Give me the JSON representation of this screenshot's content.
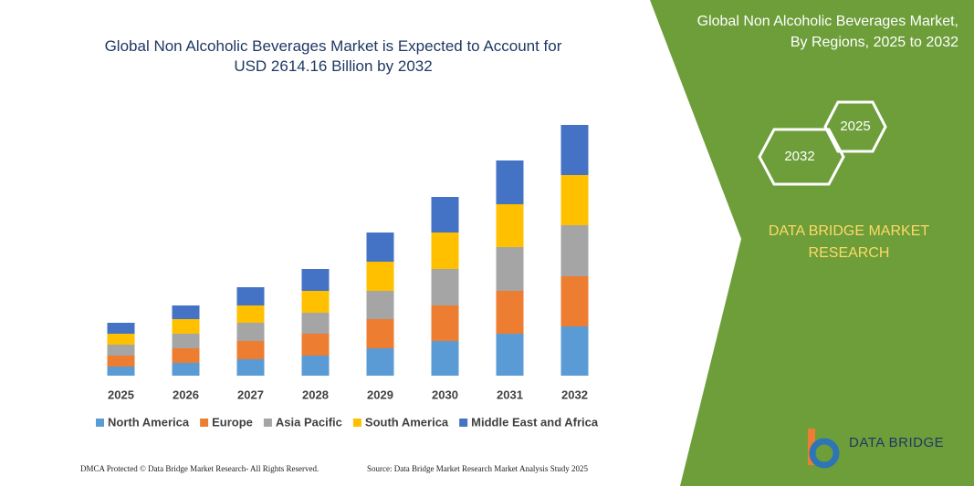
{
  "chart_data": {
    "type": "bar",
    "stacked": true,
    "title": "Global Non Alcoholic Beverages Market is Expected to Account for USD 2614.16 Billion by 2032",
    "categories": [
      "2025",
      "2026",
      "2027",
      "2028",
      "2029",
      "2030",
      "2031",
      "2032"
    ],
    "series": [
      {
        "name": "North America",
        "color": "#5b9bd5",
        "values": [
          10,
          14,
          18,
          22,
          30,
          38,
          46,
          54
        ]
      },
      {
        "name": "Europe",
        "color": "#ed7d31",
        "values": [
          12,
          16,
          20,
          24,
          32,
          39,
          47,
          55
        ]
      },
      {
        "name": "Asia Pacific",
        "color": "#a5a5a5",
        "values": [
          12,
          16,
          20,
          23,
          31,
          40,
          48,
          56
        ]
      },
      {
        "name": "South America",
        "color": "#ffc000",
        "values": [
          12,
          16,
          19,
          24,
          32,
          40,
          47,
          55
        ]
      },
      {
        "name": "Middle East and Africa",
        "color": "#4472c4",
        "values": [
          12,
          15,
          20,
          24,
          32,
          39,
          48,
          55
        ]
      }
    ]
  },
  "side_panel": {
    "title": "Global Non Alcoholic Beverages Market, By Regions, 2025 to 2032",
    "hexagons": [
      "2025",
      "2032"
    ],
    "brand": "DATA BRIDGE MARKET RESEARCH"
  },
  "footer": {
    "left": "DMCA Protected © Data Bridge Market Research- All Rights Reserved.",
    "right": "Source: Data Bridge Market Research Market Analysis Study 2025"
  },
  "logo": "DATA BRIDGE"
}
